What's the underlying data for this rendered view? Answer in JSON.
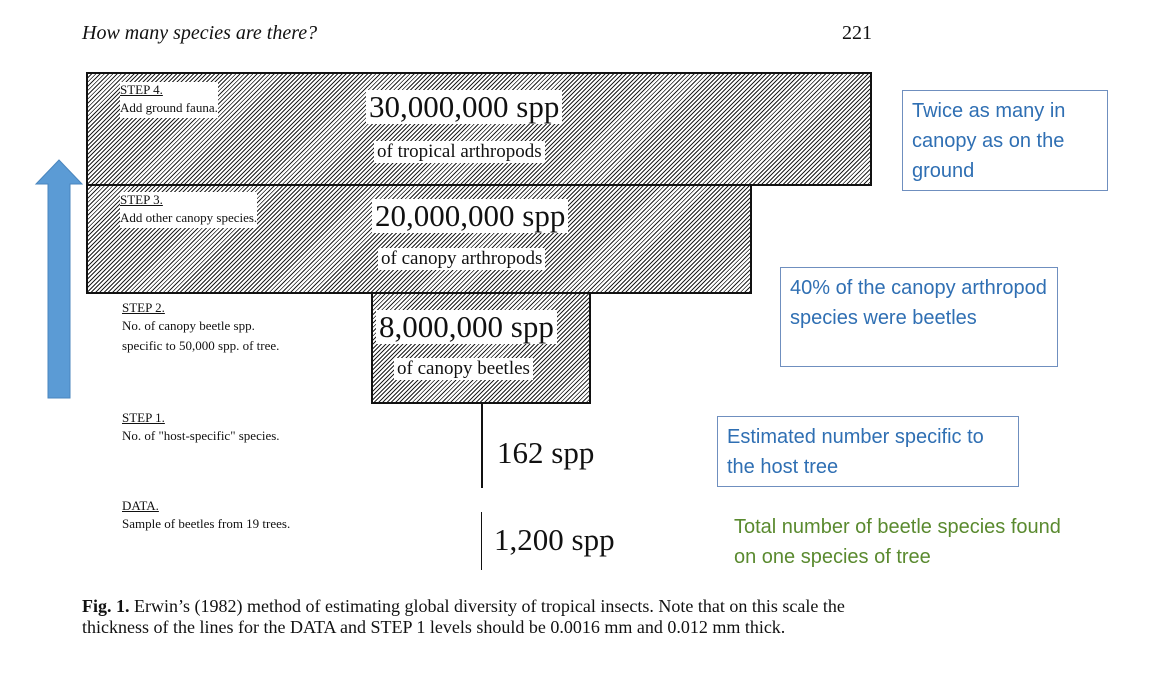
{
  "header": {
    "running_head": "How many species are there?",
    "page_number": "221"
  },
  "steps": [
    {
      "title": "STEP 4.",
      "desc": [
        "Add ground fauna."
      ],
      "value": "30,000,000 spp",
      "sub": "of tropical arthropods"
    },
    {
      "title": "STEP 3.",
      "desc": [
        "Add other canopy species."
      ],
      "value": "20,000,000 spp",
      "sub": "of canopy arthropods"
    },
    {
      "title": "STEP 2.",
      "desc": [
        "No. of canopy beetle spp.",
        "specific to 50,000 spp. of tree."
      ],
      "value": "8,000,000 spp",
      "sub": "of canopy beetles"
    },
    {
      "title": "STEP 1.",
      "desc": [
        "No. of \"host-specific\" species."
      ],
      "value": "162 spp"
    },
    {
      "title": "DATA.",
      "desc": [
        "Sample of beetles from 19 trees."
      ],
      "value": "1,200 spp"
    }
  ],
  "annotations": {
    "step4_note": "Twice as many in canopy as on the ground",
    "step2_note": "40% of the canopy arthropod species  were beetles",
    "step1_note": "Estimated number specific to the host tree",
    "data_note": "Total number  of beetle species found on one species of tree"
  },
  "caption": {
    "label": "Fig. 1.",
    "text": "Erwin’s (1982) method of estimating global diversity of tropical insects. Note that on this scale the thickness of the lines for the DATA and STEP 1 levels should be 0.0016 mm and 0.012 mm thick."
  },
  "colors": {
    "arrow": "#5b9bd5",
    "callout_text": "#2f6fb3",
    "callout_border": "#6f8fbf",
    "note_green": "#5a8a2f"
  },
  "icons": {
    "progress_arrow": "up-arrow-icon"
  }
}
